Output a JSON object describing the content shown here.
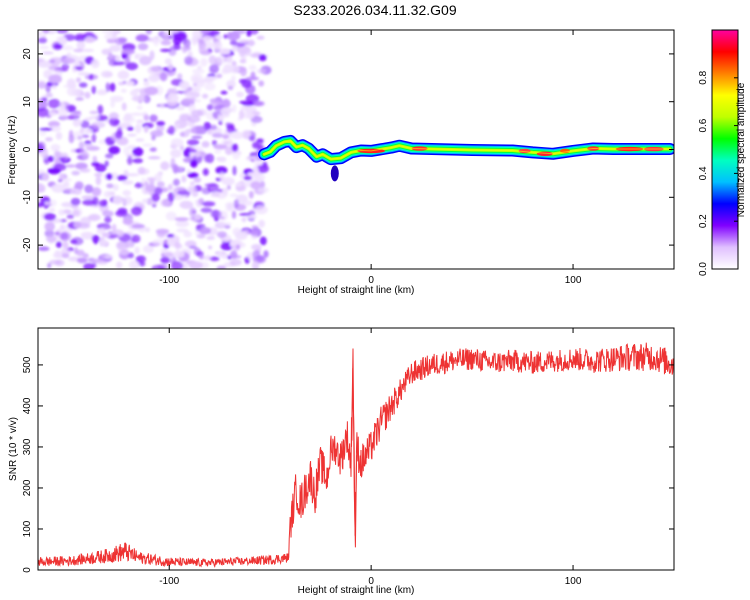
{
  "title": "S233.2026.034.11.32.G09",
  "chart_data": [
    {
      "type": "heatmap",
      "title": "S233.2026.034.11.32.G09",
      "xlabel": "Height of straight line (km)",
      "ylabel": "Frequency (Hz)",
      "xlim": [
        -165,
        150
      ],
      "ylim": [
        -25,
        25
      ],
      "x_ticks": [
        -100,
        0,
        100
      ],
      "x_tick_labels": [
        "-100",
        "0",
        "100"
      ],
      "y_ticks": [
        -20,
        -10,
        0,
        10,
        20
      ],
      "y_tick_labels": [
        "-20",
        "-10",
        "0",
        "10",
        "20"
      ],
      "noise_region_x": [
        -165,
        -52
      ],
      "signal_start_x": -53,
      "signal_end_x": 148,
      "signal_trace": [
        {
          "x": -53,
          "y": -1.0
        },
        {
          "x": -50,
          "y": -0.5
        },
        {
          "x": -47,
          "y": 0.8
        },
        {
          "x": -43,
          "y": 1.6
        },
        {
          "x": -40,
          "y": 1.8
        },
        {
          "x": -37,
          "y": 0.5
        },
        {
          "x": -34,
          "y": 0.9
        },
        {
          "x": -31,
          "y": 0.2
        },
        {
          "x": -27,
          "y": -1.5
        },
        {
          "x": -24,
          "y": -1.0
        },
        {
          "x": -20,
          "y": -2.0
        },
        {
          "x": -15,
          "y": -1.8
        },
        {
          "x": -10,
          "y": -0.6
        },
        {
          "x": -5,
          "y": -0.2
        },
        {
          "x": 0,
          "y": -0.3
        },
        {
          "x": 10,
          "y": 0.4
        },
        {
          "x": 14,
          "y": 0.8
        },
        {
          "x": 20,
          "y": 0.2
        },
        {
          "x": 30,
          "y": 0.1
        },
        {
          "x": 50,
          "y": -0.1
        },
        {
          "x": 70,
          "y": -0.2
        },
        {
          "x": 80,
          "y": -0.6
        },
        {
          "x": 90,
          "y": -0.9
        },
        {
          "x": 100,
          "y": -0.3
        },
        {
          "x": 110,
          "y": 0.2
        },
        {
          "x": 120,
          "y": 0.1
        },
        {
          "x": 130,
          "y": 0.1
        },
        {
          "x": 148,
          "y": 0.1
        }
      ],
      "colorbar": {
        "label": "Normalized spectral amplitude",
        "range": [
          0.0,
          1.0
        ],
        "ticks": [
          0.0,
          0.2,
          0.4,
          0.6,
          0.8
        ],
        "tick_labels": [
          "0.0",
          "0.2",
          "0.4",
          "0.6",
          "0.8"
        ],
        "colors": [
          "#ffffff",
          "#e0c0ff",
          "#8000ff",
          "#0000ff",
          "#00c0ff",
          "#00ffc0",
          "#00ff00",
          "#c0ff00",
          "#ffff00",
          "#ff8000",
          "#ff0000",
          "#ff00a0"
        ]
      }
    },
    {
      "type": "line",
      "xlabel": "Height of straight line (km)",
      "ylabel": "SNR (10 * v/v)",
      "xlim": [
        -165,
        150
      ],
      "ylim": [
        0,
        590
      ],
      "x_ticks": [
        -100,
        0,
        100
      ],
      "x_tick_labels": [
        "-100",
        "0",
        "100"
      ],
      "y_ticks": [
        0,
        100,
        200,
        300,
        400,
        500
      ],
      "y_tick_labels": [
        "0",
        "100",
        "200",
        "300",
        "400",
        "500"
      ],
      "series": [
        {
          "name": "SNR",
          "color": "#ee3333",
          "x": [
            -165,
            -150,
            -140,
            -130,
            -122,
            -115,
            -100,
            -90,
            -80,
            -70,
            -60,
            -50,
            -45,
            -41,
            -40,
            -37,
            -35,
            -30,
            -28,
            -25,
            -22,
            -20,
            -18,
            -15,
            -12,
            -10,
            -9,
            -8,
            -7,
            -5,
            0,
            5,
            10,
            15,
            20,
            25,
            30,
            35,
            40,
            50,
            60,
            70,
            80,
            90,
            100,
            110,
            120,
            130,
            140,
            150
          ],
          "values": [
            20,
            22,
            28,
            35,
            45,
            30,
            20,
            18,
            18,
            20,
            22,
            25,
            28,
            30,
            110,
            200,
            160,
            230,
            180,
            260,
            220,
            290,
            300,
            270,
            330,
            260,
            500,
            120,
            300,
            260,
            300,
            360,
            400,
            440,
            480,
            490,
            500,
            505,
            510,
            515,
            505,
            510,
            505,
            510,
            515,
            510,
            515,
            520,
            520,
            500
          ],
          "noise_amplitude": [
            12,
            12,
            14,
            18,
            25,
            15,
            12,
            10,
            10,
            10,
            10,
            12,
            12,
            12,
            40,
            50,
            50,
            45,
            50,
            45,
            45,
            40,
            40,
            45,
            45,
            60,
            60,
            60,
            50,
            45,
            40,
            40,
            35,
            30,
            28,
            28,
            28,
            28,
            28,
            28,
            28,
            28,
            28,
            28,
            28,
            30,
            32,
            35,
            35,
            35
          ]
        }
      ]
    }
  ]
}
